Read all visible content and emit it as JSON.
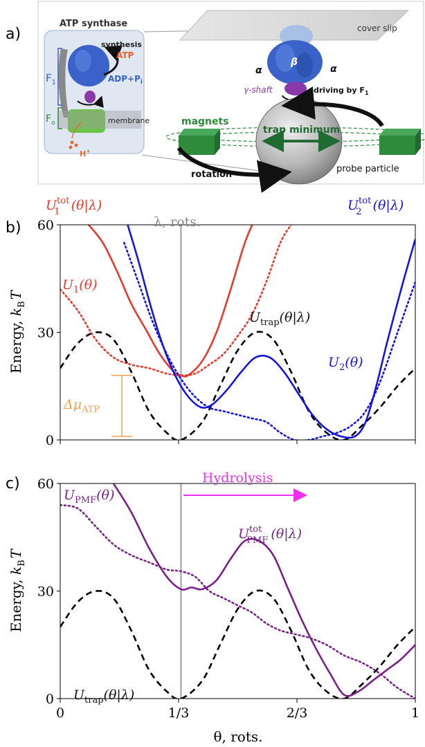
{
  "panel_labels": {
    "a": "a)",
    "b": "b)",
    "c": "c)"
  },
  "schematic": {
    "title": "ATP synthase",
    "synthesis": "synthesis",
    "atp": "ATP",
    "adp": "ADP+P",
    "adp_sub": "i",
    "f1_main": "F",
    "f1_sub": "1",
    "fo_main": "F",
    "fo_sub": "o",
    "membrane": "membrane",
    "proton": "H",
    "proton_sup": "+",
    "cover_slip": "cover slip",
    "beta": "β",
    "alpha_left": "α",
    "alpha_right": "α",
    "gamma_shaft": "γ-shaft",
    "driving": "driving by F",
    "driving_sub": "1",
    "magnets": "magnets",
    "trap_minimum": "trap minimum",
    "rotation": "rotation",
    "probe_particle": "probe particle"
  },
  "colors": {
    "u1": "#e8392a",
    "u2": "#1414e6",
    "trap": "#000000",
    "pmf": "#7b1f8a",
    "hydrolysis": "#ee2ff0",
    "delta_mu": "#f0a050",
    "lambda_line": "#b0b0b0",
    "magnet_green": "#2e8b3a",
    "protein_blue": "#3a62c8",
    "shaft_purple": "#8a3aa8",
    "fo_green": "#6cc24a"
  },
  "chart_data": [
    {
      "type": "line",
      "panel": "b",
      "xlabel": "",
      "ylabel": "Energy, kBT",
      "ylabel_parts": {
        "main": "Energy, ",
        "k": "k",
        "sub": "B",
        "t": "T"
      },
      "xlim": [
        0,
        1
      ],
      "ylim": [
        0,
        60
      ],
      "yticks": [
        "0",
        "30",
        "60"
      ],
      "lambda": 0.34,
      "lambda_label": "λ, rots.",
      "labels": {
        "u1tot": {
          "main": "U",
          "sup": "tot",
          "sub": "1",
          "arg": "(θ|λ)"
        },
        "u2tot": {
          "main": "U",
          "sup": "tot",
          "sub": "2",
          "arg": "(θ|λ)"
        },
        "u1": {
          "main": "U",
          "sub": "1",
          "arg": "(θ)"
        },
        "u2": {
          "main": "U",
          "sub": "2",
          "arg": "(θ)"
        },
        "utrap": {
          "main": "U",
          "sub": "trap",
          "arg": "(θ|λ)"
        },
        "delta_mu": {
          "main": "Δμ",
          "sub": "ATP"
        }
      },
      "delta_mu_range": [
        1,
        18
      ],
      "series": [
        {
          "key": "trap",
          "style": "dashed",
          "x": [
            0,
            0.05,
            0.1,
            0.15,
            0.2,
            0.25,
            0.3,
            0.34,
            0.4,
            0.45,
            0.5,
            0.55,
            0.6,
            0.65,
            0.7,
            0.75,
            0.8,
            0.85,
            0.9,
            0.95,
            1.0
          ],
          "y": [
            20,
            27,
            30,
            28,
            19,
            8,
            2,
            0,
            5,
            15,
            25,
            30,
            28,
            19,
            8,
            2,
            0,
            4,
            9,
            15,
            20
          ]
        },
        {
          "key": "u1tot",
          "style": "solid",
          "x": [
            0.08,
            0.12,
            0.16,
            0.2,
            0.24,
            0.28,
            0.32,
            0.34,
            0.36,
            0.4,
            0.44,
            0.48,
            0.52,
            0.55
          ],
          "y": [
            60,
            55,
            47,
            38,
            31,
            24,
            19,
            18,
            18,
            22,
            30,
            42,
            55,
            62
          ]
        },
        {
          "key": "u1",
          "style": "dotted",
          "x": [
            0,
            0.05,
            0.1,
            0.15,
            0.2,
            0.25,
            0.3,
            0.34,
            0.38,
            0.42,
            0.46,
            0.5,
            0.54,
            0.58,
            0.62,
            0.65
          ],
          "y": [
            42,
            36,
            28,
            23,
            21,
            20,
            18.5,
            18,
            18.5,
            21,
            24,
            29,
            35,
            44,
            55,
            60
          ]
        },
        {
          "key": "u2tot",
          "style": "solid",
          "x": [
            0.19,
            0.22,
            0.25,
            0.28,
            0.31,
            0.34,
            0.37,
            0.4,
            0.43,
            0.47,
            0.51,
            0.55,
            0.59,
            0.63,
            0.67,
            0.71,
            0.75,
            0.79,
            0.83,
            0.86,
            0.89,
            0.92,
            0.96,
            1.0
          ],
          "y": [
            60,
            50,
            39,
            29,
            21,
            15,
            11,
            9,
            10,
            14,
            19,
            23,
            23,
            19,
            13,
            7,
            3,
            1,
            1,
            5,
            15,
            27,
            42,
            56
          ]
        },
        {
          "key": "u2",
          "style": "dotted",
          "x": [
            0.18,
            0.22,
            0.26,
            0.3,
            0.34,
            0.38,
            0.42,
            0.46,
            0.5,
            0.54,
            0.58,
            0.62,
            0.66,
            0.7,
            0.74,
            0.78,
            0.82,
            0.86,
            0.9,
            0.95,
            1.0
          ],
          "y": [
            55,
            44,
            33,
            24,
            17,
            12,
            9,
            8,
            7,
            6,
            5,
            2,
            0,
            0,
            1,
            2,
            4,
            8,
            16,
            30,
            44
          ]
        }
      ]
    },
    {
      "type": "line",
      "panel": "c",
      "xlabel": "θ, rots.",
      "ylabel": "Energy, kBT",
      "ylabel_parts": {
        "main": "Energy, ",
        "k": "k",
        "sub": "B",
        "t": "T"
      },
      "xlim": [
        0,
        1
      ],
      "ylim": [
        0,
        60
      ],
      "yticks": [
        "0",
        "30",
        "60"
      ],
      "xticks": [
        "0",
        "1/3",
        "2/3",
        "1"
      ],
      "lambda": 0.34,
      "annotation": "Hydrolysis",
      "labels": {
        "upmf": {
          "main": "U",
          "sub": "PMF",
          "arg": "(θ)"
        },
        "upmftot": {
          "main": "U",
          "sup": "tot",
          "sub": "PMF",
          "arg": "(θ|λ)"
        },
        "utrap": {
          "main": "U",
          "sub": "trap",
          "arg": "(θ|λ)"
        }
      },
      "series": [
        {
          "key": "trap",
          "style": "dashed",
          "x": [
            0,
            0.05,
            0.1,
            0.15,
            0.2,
            0.25,
            0.3,
            0.34,
            0.4,
            0.45,
            0.5,
            0.55,
            0.6,
            0.65,
            0.7,
            0.75,
            0.8,
            0.85,
            0.9,
            0.95,
            1.0
          ],
          "y": [
            20,
            27,
            30,
            28,
            19,
            8,
            2,
            0,
            5,
            15,
            25,
            30,
            28,
            19,
            8,
            2,
            0,
            4,
            9,
            15,
            20
          ]
        },
        {
          "key": "upmftot",
          "style": "solid",
          "x": [
            0.15,
            0.2,
            0.25,
            0.3,
            0.34,
            0.37,
            0.4,
            0.44,
            0.48,
            0.52,
            0.56,
            0.6,
            0.64,
            0.68,
            0.72,
            0.76,
            0.8,
            0.84,
            0.88,
            0.92,
            0.96,
            1.0
          ],
          "y": [
            60,
            52,
            42,
            34,
            30.5,
            31,
            30.5,
            33,
            39,
            44,
            44,
            40,
            31,
            22,
            14,
            7,
            1,
            2,
            5,
            8,
            11,
            15
          ]
        },
        {
          "key": "upmf",
          "style": "dotted",
          "x": [
            0,
            0.05,
            0.1,
            0.15,
            0.2,
            0.25,
            0.3,
            0.34,
            0.38,
            0.42,
            0.46,
            0.5,
            0.54,
            0.58,
            0.62,
            0.66,
            0.7,
            0.75,
            0.8,
            0.85,
            0.9,
            0.95,
            1.0
          ],
          "y": [
            54,
            53,
            48,
            43,
            40,
            38,
            36,
            35.5,
            34,
            30,
            28,
            26,
            24,
            21,
            19,
            18,
            17,
            15,
            12,
            10,
            7,
            3,
            0
          ]
        }
      ]
    }
  ]
}
